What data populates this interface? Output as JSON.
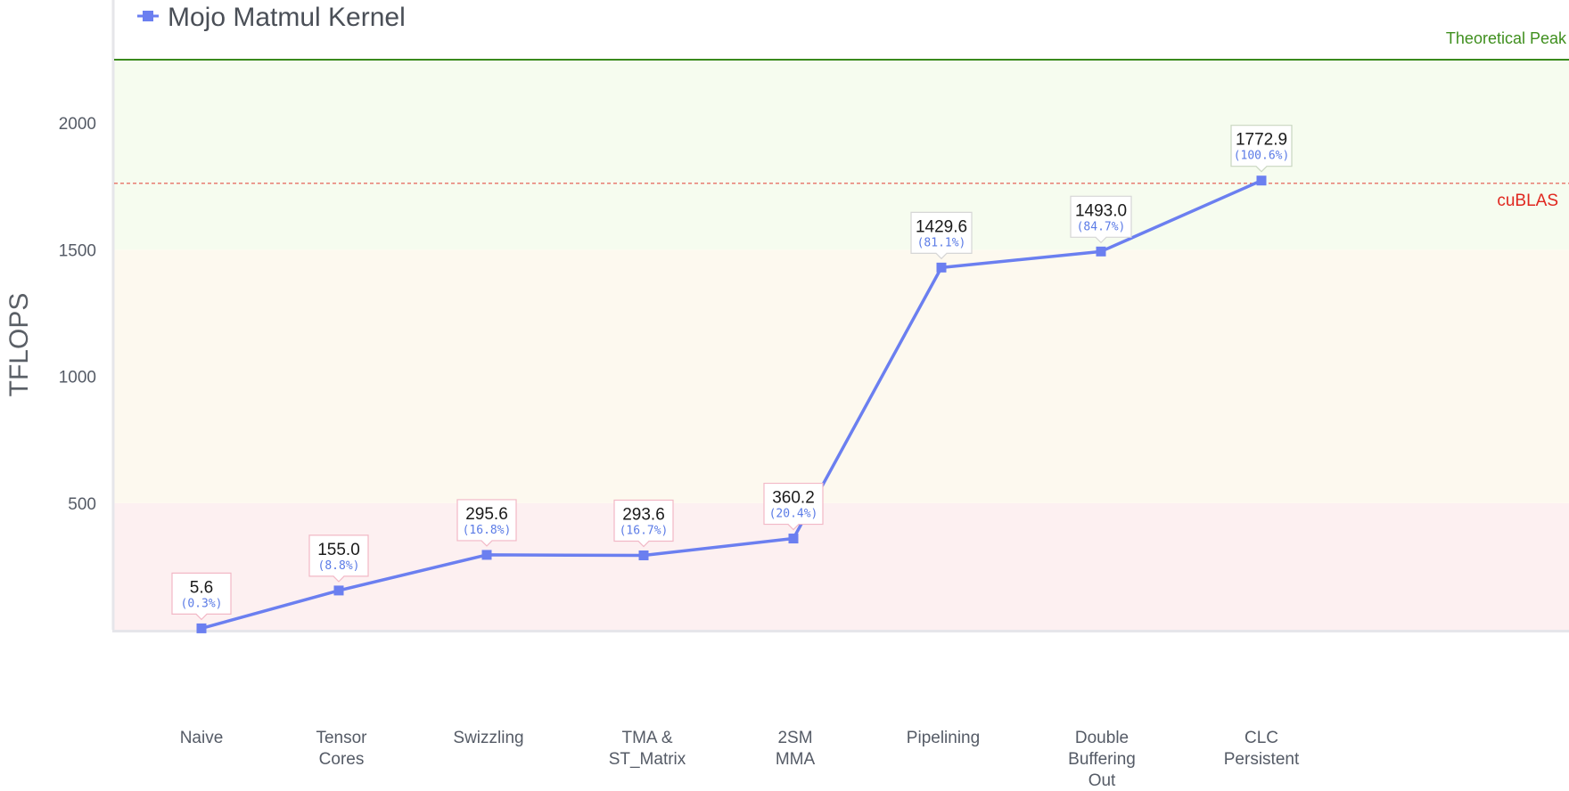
{
  "colors": {
    "series": "#6b7ff0",
    "theoretical_peak": "#3a8a1c",
    "cublas": "#e0271f",
    "band_low": "#fdf0f1",
    "band_mid": "#fdf9ef",
    "band_high": "#f6fcef"
  },
  "chart_data": {
    "type": "line",
    "ylabel": "TFLOPS",
    "ylim": [
      0,
      2250
    ],
    "yticks": [
      500,
      1000,
      1500,
      2000
    ],
    "categories": [
      "Naive",
      "Tensor\nCores",
      "Swizzling",
      "TMA &\nST_Matrix",
      "2SM\nMMA",
      "Pipelining",
      "Double\nBuffering\nOut",
      "CLC\nPersistent"
    ],
    "series": [
      {
        "name": "Mojo Matmul Kernel",
        "values": [
          5.6,
          155.0,
          295.6,
          293.6,
          360.2,
          1429.6,
          1493.0,
          1772.9
        ],
        "labels": [
          "5.6",
          "155.0",
          "295.6",
          "293.6",
          "360.2",
          "1429.6",
          "1493.0",
          "1772.9"
        ],
        "percent_labels": [
          "(0.3%)",
          "(8.8%)",
          "(16.8%)",
          "(16.7%)",
          "(20.4%)",
          "(81.1%)",
          "(84.7%)",
          "(100.6%)"
        ]
      }
    ],
    "reference_lines": [
      {
        "name": "Theoretical Peak",
        "value": 2250,
        "style": "solid"
      },
      {
        "name": "cuBLAS",
        "value": 1762,
        "style": "dashed"
      }
    ],
    "bands": [
      {
        "from": 0,
        "to": 500,
        "zone": "low"
      },
      {
        "from": 500,
        "to": 1500,
        "zone": "mid"
      },
      {
        "from": 1500,
        "to": 2250,
        "zone": "high"
      }
    ],
    "legend_position": "top-left",
    "grid": false
  }
}
